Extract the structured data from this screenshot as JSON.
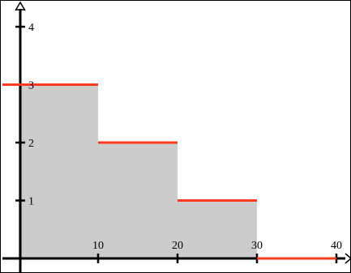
{
  "chart_data": {
    "type": "area",
    "title": "",
    "xlabel": "",
    "ylabel": "",
    "xlim": [
      0,
      40
    ],
    "ylim": [
      0,
      4
    ],
    "grid": false,
    "x_ticks": [
      10,
      20,
      30,
      40
    ],
    "y_ticks": [
      1,
      2,
      3,
      4
    ],
    "series": [
      {
        "segments": [
          {
            "x": [
              0,
              10
            ],
            "y": 3
          },
          {
            "x": [
              10,
              20
            ],
            "y": 2
          },
          {
            "x": [
              20,
              30
            ],
            "y": 1
          },
          {
            "x": [
              30,
              40
            ],
            "y": 0
          }
        ],
        "line_color": "#ff3b1f",
        "fill_color": "#cccccc"
      }
    ]
  }
}
